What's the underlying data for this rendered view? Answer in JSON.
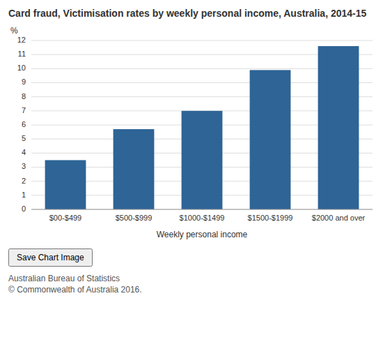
{
  "chart_data": {
    "type": "bar",
    "title": "Card fraud, Victimisation rates by weekly personal income, Australia, 2014-15",
    "categories": [
      "$00-$499",
      "$500-$999",
      "$1000-$1499",
      "$1500-$1999",
      "$2000 and over"
    ],
    "values": [
      3.5,
      5.7,
      7.0,
      9.9,
      11.6
    ],
    "color": "#2e6496",
    "xlabel": "Weekly personal income",
    "ylabel": "%",
    "ylim": [
      0,
      12
    ],
    "yticks": [
      0,
      1,
      2,
      3,
      4,
      5,
      6,
      7,
      8,
      9,
      10,
      11,
      12
    ],
    "grid": true,
    "annotations": [
      "Australian Bureau of Statistics",
      "© Commonwealth of Australia 2016."
    ],
    "button": "Save Chart Image"
  }
}
